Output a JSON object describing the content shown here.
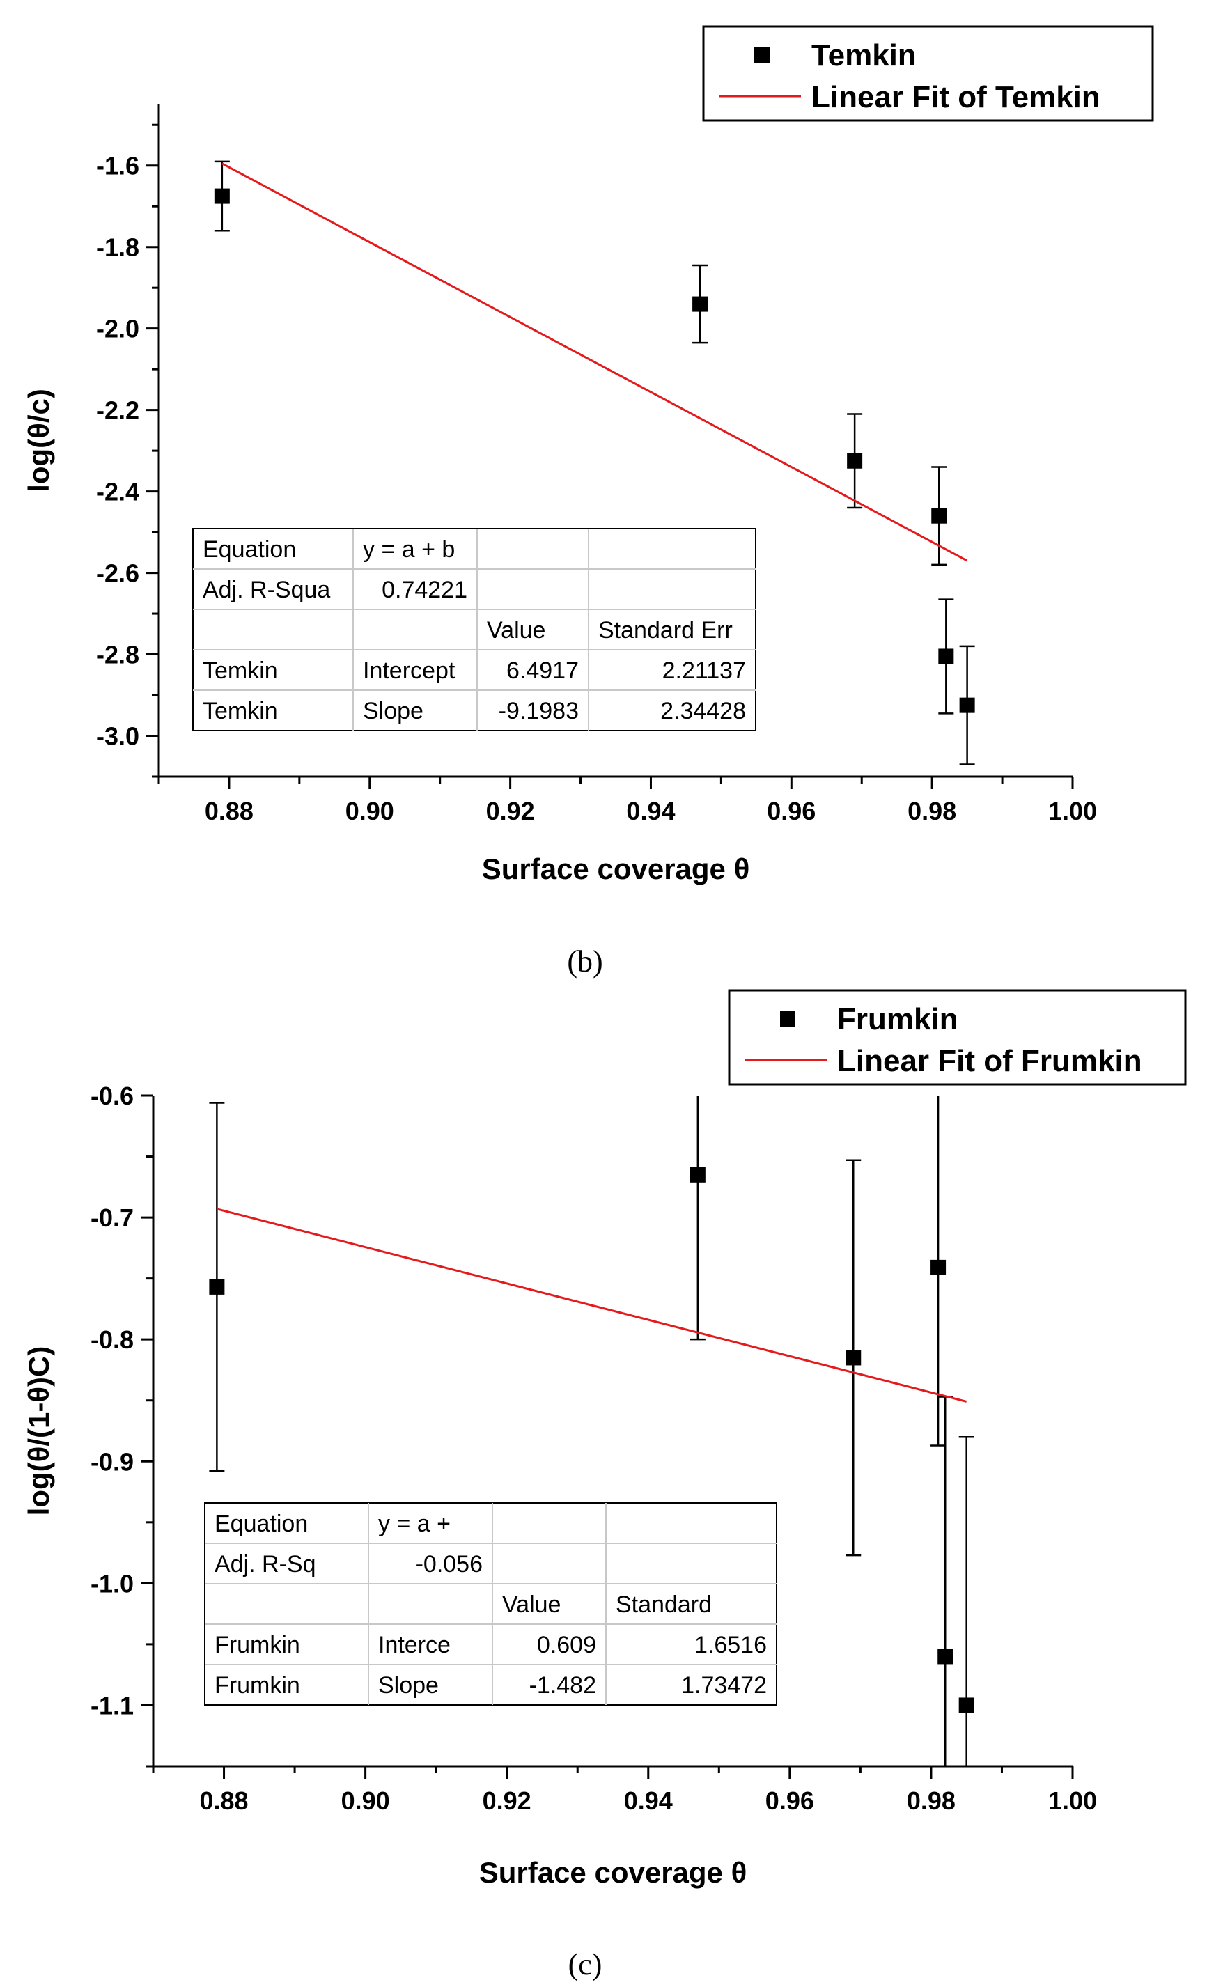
{
  "chart_data": [
    {
      "type": "scatter",
      "panel": "(b)",
      "xlabel": "Surface coverage θ",
      "ylabel": "log(θ/c)",
      "xlim": [
        0.87,
        1.0
      ],
      "ylim": [
        -3.1,
        -1.45
      ],
      "xticks": [
        0.88,
        0.9,
        0.92,
        0.94,
        0.96,
        0.98,
        1.0
      ],
      "xtick_labels": [
        "0.88",
        "0.90",
        "0.92",
        "0.94",
        "0.96",
        "0.98",
        "1.00"
      ],
      "yticks": [
        -1.6,
        -1.8,
        -2.0,
        -2.2,
        -2.4,
        -2.6,
        -2.8,
        -3.0
      ],
      "ytick_labels": [
        "-1.6",
        "-1.8",
        "-2.0",
        "-2.2",
        "-2.4",
        "-2.6",
        "-2.8",
        "-3.0"
      ],
      "series": [
        {
          "name": "Temkin",
          "kind": "points",
          "marker": "square",
          "color": "#000000",
          "x": [
            0.879,
            0.947,
            0.969,
            0.981,
            0.982,
            0.985
          ],
          "y": [
            -1.675,
            -1.94,
            -2.325,
            -2.46,
            -2.805,
            -2.925
          ],
          "err": [
            0.085,
            0.095,
            0.115,
            0.12,
            0.14,
            0.145
          ]
        },
        {
          "name": "Linear Fit of Temkin",
          "kind": "line",
          "color": "#e41a1c",
          "x": [
            0.879,
            0.985
          ],
          "y": [
            -1.595,
            -2.57
          ]
        }
      ],
      "legend_position": "top-right",
      "fit_table": {
        "rows": [
          [
            "Equation",
            "y = a + b",
            "",
            ""
          ],
          [
            "Adj. R-Squa",
            "0.74221",
            "",
            ""
          ],
          [
            "",
            "",
            "Value",
            "Standard Err"
          ],
          [
            "Temkin",
            "Intercept",
            "6.4917",
            "2.21137"
          ],
          [
            "Temkin",
            "Slope",
            "-9.1983",
            "2.34428"
          ]
        ]
      }
    },
    {
      "type": "scatter",
      "panel": "(c)",
      "xlabel": "Surface coverage θ",
      "ylabel": "log(θ/(1-θ)C)",
      "xlim": [
        0.87,
        1.0
      ],
      "ylim": [
        -1.15,
        -0.6
      ],
      "xticks": [
        0.88,
        0.9,
        0.92,
        0.94,
        0.96,
        0.98,
        1.0
      ],
      "xtick_labels": [
        "0.88",
        "0.90",
        "0.92",
        "0.94",
        "0.96",
        "0.98",
        "1.00"
      ],
      "yticks": [
        -0.6,
        -0.7,
        -0.8,
        -0.9,
        -1.0,
        -1.1
      ],
      "ytick_labels": [
        "-0.6",
        "-0.7",
        "-0.8",
        "-0.9",
        "-1.0",
        "-1.1"
      ],
      "series": [
        {
          "name": "Frumkin",
          "kind": "points",
          "marker": "square",
          "color": "#000000",
          "x": [
            0.879,
            0.947,
            0.969,
            0.981,
            0.982,
            0.985
          ],
          "y": [
            -0.757,
            -0.665,
            -0.815,
            -0.741,
            -1.06,
            -1.1
          ],
          "err": [
            0.151,
            0.135,
            0.162,
            0.146,
            0.213,
            0.22
          ]
        },
        {
          "name": "Linear Fit of Frumkin",
          "kind": "line",
          "color": "#e41a1c",
          "x": [
            0.879,
            0.985
          ],
          "y": [
            -0.693,
            -0.851
          ]
        }
      ],
      "legend_position": "top-right",
      "fit_table": {
        "rows": [
          [
            "Equation",
            "y = a +",
            "",
            ""
          ],
          [
            "Adj. R-Sq",
            "-0.056",
            "",
            ""
          ],
          [
            "",
            "",
            "Value",
            "Standard"
          ],
          [
            "Frumkin",
            "Interce",
            "0.609",
            "1.6516"
          ],
          [
            "Frumkin",
            "Slope",
            "-1.482",
            "1.73472"
          ]
        ]
      }
    }
  ]
}
